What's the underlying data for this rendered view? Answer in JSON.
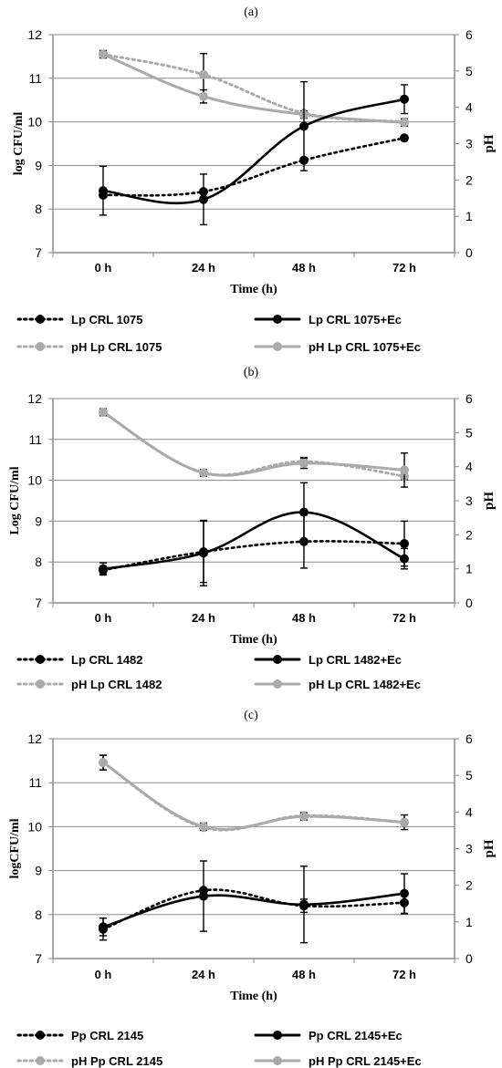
{
  "chart_data": [
    {
      "type": "line",
      "panel_label": "(a)",
      "categories": [
        "0 h",
        "24 h",
        "48 h",
        "72 h"
      ],
      "xlabel": "Time (h)",
      "ylabel": "log CFU/ml",
      "y2label": "pH",
      "ylim": [
        7,
        12
      ],
      "y2lim": [
        0,
        6
      ],
      "yticks": [
        "7",
        "8",
        "9",
        "10",
        "11",
        "12"
      ],
      "y2ticks": [
        "0",
        "1",
        "2",
        "3",
        "4",
        "5",
        "6"
      ],
      "grid": true,
      "legend_placement": "bottom",
      "series": [
        {
          "name": "Lp CRL 1075",
          "axis": "left",
          "style": "dotted",
          "color": "#000000",
          "values": [
            8.32,
            8.4,
            9.12,
            9.63
          ],
          "errors": [
            0,
            0,
            0,
            0
          ]
        },
        {
          "name": "Lp CRL 1075+Ec",
          "axis": "left",
          "style": "solid",
          "color": "#000000",
          "values": [
            8.42,
            8.22,
            9.9,
            10.52
          ],
          "errors": [
            0.56,
            0.58,
            1.02,
            0.33
          ]
        },
        {
          "name": "pH Lp CRL 1075",
          "axis": "right",
          "style": "dotted",
          "color": "#aaaaaa",
          "values": [
            5.46,
            4.9,
            3.84,
            3.6
          ],
          "errors": [
            0.1,
            0.58,
            0,
            0
          ]
        },
        {
          "name": "pH Lp CRL 1075+Ec",
          "axis": "right",
          "style": "solid",
          "color": "#aaaaaa",
          "values": [
            5.46,
            4.3,
            3.8,
            3.58
          ],
          "errors": [
            0.1,
            0.18,
            0.1,
            0.1
          ]
        }
      ]
    },
    {
      "type": "line",
      "panel_label": "(b)",
      "categories": [
        "0 h",
        "24 h",
        "48 h",
        "72 h"
      ],
      "xlabel": "Time (h)",
      "ylabel": "Log CFU/ml",
      "y2label": "pH",
      "ylim": [
        7,
        12
      ],
      "y2lim": [
        0,
        6
      ],
      "yticks": [
        "7",
        "8",
        "9",
        "10",
        "11",
        "12"
      ],
      "y2ticks": [
        "0",
        "1",
        "2",
        "3",
        "4",
        "5",
        "6"
      ],
      "grid": true,
      "legend_placement": "bottom",
      "series": [
        {
          "name": "Lp CRL 1482",
          "axis": "left",
          "style": "dotted",
          "color": "#000000",
          "values": [
            7.8,
            8.25,
            8.5,
            8.45
          ],
          "errors": [
            0.1,
            0.75,
            0.65,
            0.55
          ]
        },
        {
          "name": "Lp CRL 1482+Ec",
          "axis": "left",
          "style": "solid",
          "color": "#000000",
          "values": [
            7.83,
            8.22,
            9.22,
            8.08
          ],
          "errors": [
            0.15,
            0.8,
            0.72,
            0.25
          ]
        },
        {
          "name": "pH Lp CRL 1482",
          "axis": "right",
          "style": "dotted",
          "color": "#aaaaaa",
          "values": [
            5.6,
            3.82,
            4.15,
            3.72
          ],
          "errors": [
            0.1,
            0.1,
            0.12,
            0.1
          ]
        },
        {
          "name": "pH Lp CRL 1482+Ec",
          "axis": "right",
          "style": "solid",
          "color": "#aaaaaa",
          "values": [
            5.6,
            3.82,
            4.1,
            3.9
          ],
          "errors": [
            0.1,
            0.1,
            0.15,
            0.5
          ]
        }
      ]
    },
    {
      "type": "line",
      "panel_label": "(c)",
      "categories": [
        "0 h",
        "24 h",
        "48 h",
        "72 h"
      ],
      "xlabel": "Time (h)",
      "ylabel": "logCFU/ml",
      "y2label": "pH",
      "ylim": [
        7,
        12
      ],
      "y2lim": [
        0,
        6
      ],
      "yticks": [
        "7",
        "8",
        "9",
        "10",
        "11",
        "12"
      ],
      "y2ticks": [
        "0",
        "1",
        "2",
        "3",
        "4",
        "5",
        "6"
      ],
      "grid": true,
      "legend_placement": "bottom",
      "series": [
        {
          "name": "Pp CRL 2145",
          "axis": "left",
          "style": "dotted",
          "color": "#000000",
          "values": [
            7.67,
            8.55,
            8.2,
            8.27
          ],
          "errors": [
            0.25,
            0,
            0.15,
            0.25
          ]
        },
        {
          "name": "Pp CRL 2145+Ec",
          "axis": "left",
          "style": "solid",
          "color": "#000000",
          "values": [
            7.72,
            8.42,
            8.23,
            8.48
          ],
          "errors": [
            0.2,
            0.8,
            0.87,
            0.45
          ]
        },
        {
          "name": "pH Pp CRL 2145",
          "axis": "right",
          "style": "dotted",
          "color": "#aaaaaa",
          "values": [
            5.35,
            3.58,
            3.9,
            3.72
          ],
          "errors": [
            0.2,
            0,
            0,
            0
          ]
        },
        {
          "name": "pH Pp CRL 2145+Ec",
          "axis": "right",
          "style": "solid",
          "color": "#aaaaaa",
          "values": [
            5.35,
            3.6,
            3.88,
            3.72
          ],
          "errors": [
            0.2,
            0.1,
            0.1,
            0.2
          ]
        }
      ]
    }
  ]
}
